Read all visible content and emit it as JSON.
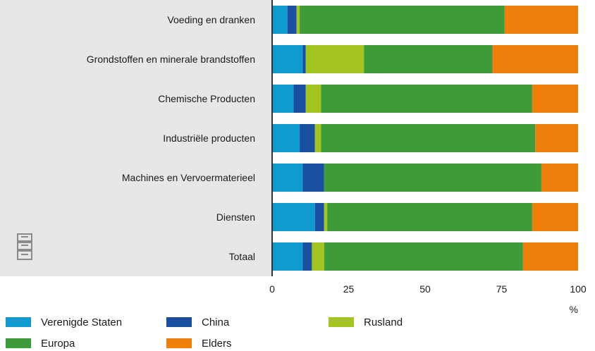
{
  "chart_data": {
    "type": "bar",
    "orientation": "horizontal",
    "stacked": true,
    "categories": [
      "Voeding en dranken",
      "Grondstoffen en minerale brandstoffen",
      "Chemische Producten",
      "Industriële producten",
      "Machines en Vervoermaterieel",
      "Diensten",
      "Totaal"
    ],
    "series": [
      {
        "name": "Verenigde Staten",
        "color": "#0f9ad0",
        "values": [
          5,
          10,
          7,
          9,
          10,
          14,
          10
        ]
      },
      {
        "name": "China",
        "color": "#1a4fa0",
        "values": [
          3,
          1,
          4,
          5,
          7,
          3,
          3
        ]
      },
      {
        "name": "Rusland",
        "color": "#a4c520",
        "values": [
          1,
          19,
          5,
          2,
          0,
          1,
          4
        ]
      },
      {
        "name": "Europa",
        "color": "#3d9b3a",
        "values": [
          67,
          42,
          69,
          70,
          71,
          67,
          65
        ]
      },
      {
        "name": "Elders",
        "color": "#f07e0a",
        "values": [
          24,
          28,
          15,
          14,
          12,
          15,
          18
        ]
      }
    ],
    "xticks": [
      "0",
      "25",
      "50",
      "75",
      "100"
    ],
    "xlim": [
      0,
      100
    ],
    "xunit": "%",
    "grid": false,
    "legend_position": "bottom"
  },
  "branding": {
    "logo": "cbs-logo"
  }
}
